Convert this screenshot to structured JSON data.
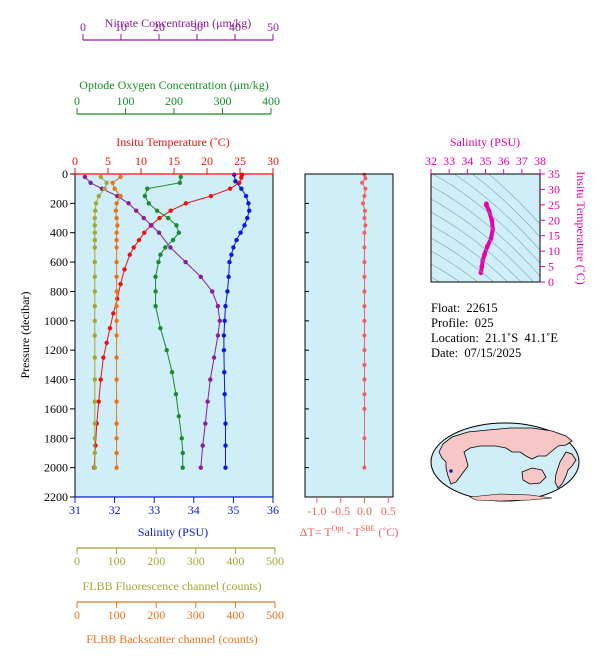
{
  "colors": {
    "nitrate": "#8a1d9a",
    "oxygen": "#1a8a2a",
    "temperature": "#ee1111",
    "salinity": "#0a1ad8",
    "fluorescence": "#a5a533",
    "backscatter": "#e8741b",
    "delta_t": "#f06060",
    "ts_curve": "#e600a8",
    "panel_bg": "#cfeef8"
  },
  "axes": {
    "nitrate": {
      "label": "Nitrate Concentration (μm/kg)",
      "ticks": [
        "0",
        "10",
        "20",
        "30",
        "40",
        "50"
      ]
    },
    "oxygen": {
      "label": "Optode Oxygen Concentration (μm/kg)",
      "ticks": [
        "0",
        "100",
        "200",
        "300",
        "400"
      ]
    },
    "temperature": {
      "label": "Insitu Temperature (˚C)",
      "ticks": [
        "0",
        "5",
        "10",
        "15",
        "20",
        "25",
        "30"
      ]
    },
    "salinity": {
      "label": "Salinity (PSU)",
      "ticks": [
        "31",
        "32",
        "33",
        "34",
        "35",
        "36"
      ]
    },
    "pressure": {
      "label": "Pressure (decibar)",
      "ticks": [
        "0",
        "200",
        "400",
        "600",
        "800",
        "1000",
        "1200",
        "1400",
        "1600",
        "1800",
        "2000",
        "2200"
      ]
    },
    "delta_t": {
      "label_main": "ΔT= T",
      "label_sup1": "Opt",
      "label_mid": " - T",
      "label_sup2": "SBE",
      "label_end": " (˚C)",
      "ticks": [
        "-1.0",
        "-0.5",
        "0.0",
        "0.5"
      ]
    },
    "fluorescence": {
      "label": "FLBB Fluorescence channel (counts)",
      "ticks": [
        "0",
        "100",
        "200",
        "300",
        "400",
        "500"
      ]
    },
    "backscatter": {
      "label": "FLBB Backscatter channel (counts)",
      "ticks": [
        "0",
        "100",
        "200",
        "300",
        "400",
        "500"
      ]
    },
    "ts_salinity": {
      "label": "Salinity (PSU)",
      "ticks": [
        "32",
        "33",
        "34",
        "35",
        "36",
        "37",
        "38"
      ]
    },
    "ts_temperature": {
      "label": "Insitu Temperature (˚C)",
      "ticks": [
        "0",
        "5",
        "10",
        "15",
        "20",
        "25",
        "30",
        "35"
      ]
    }
  },
  "info": {
    "float": "Float:  22615",
    "profile": "Profile:  025",
    "location": "Location:  21.1˚S  41.1˚E",
    "date": "Date:  07/15/2025"
  },
  "chart_data": [
    {
      "type": "line",
      "title": "",
      "ylabel": "Pressure (decibar)",
      "ylim": [
        2200,
        0
      ],
      "grid": false,
      "series": [
        {
          "name": "Insitu Temperature (˚C)",
          "xlim": [
            0,
            30
          ],
          "x": [
            25.3,
            25.2,
            24.9,
            23.5,
            20.6,
            16.8,
            14.5,
            12.8,
            11.5,
            10.5,
            9.7,
            8.9,
            8.3,
            7.5,
            6.9,
            6.4,
            5.8,
            5.3,
            4.8,
            4.3,
            3.9,
            3.6,
            3.3,
            3.1,
            2.9
          ],
          "y": [
            5,
            25,
            60,
            100,
            150,
            200,
            250,
            300,
            350,
            400,
            450,
            500,
            550,
            650,
            750,
            850,
            950,
            1050,
            1150,
            1250,
            1400,
            1550,
            1700,
            1850,
            2000
          ]
        },
        {
          "name": "Salinity (PSU)",
          "xlim": [
            31,
            36
          ],
          "x": [
            35.02,
            35.05,
            35.2,
            35.32,
            35.38,
            35.4,
            35.35,
            35.28,
            35.18,
            35.08,
            35.0,
            34.95,
            34.9,
            34.88,
            34.85,
            34.8,
            34.78,
            34.76,
            34.76,
            34.77,
            34.78,
            34.8,
            34.8,
            34.8
          ],
          "y": [
            5,
            50,
            100,
            150,
            200,
            250,
            300,
            350,
            400,
            450,
            500,
            550,
            600,
            700,
            800,
            900,
            1000,
            1100,
            1200,
            1350,
            1500,
            1700,
            1850,
            2000
          ]
        },
        {
          "name": "Nitrate Concentration (μm/kg)",
          "xlim": [
            0,
            50
          ],
          "x": [
            0.5,
            2,
            5,
            9,
            12,
            14,
            16,
            18,
            20,
            23,
            27,
            31,
            34,
            35.5,
            36,
            35.5,
            34.5,
            33.5,
            32.8,
            32.2,
            31.5,
            31
          ],
          "y": [
            20,
            60,
            100,
            150,
            200,
            250,
            300,
            350,
            400,
            500,
            600,
            700,
            800,
            900,
            1000,
            1100,
            1250,
            1400,
            1550,
            1700,
            1850,
            2000
          ]
        },
        {
          "name": "Optode Oxygen Concentration (μm/kg)",
          "xlim": [
            0,
            400
          ],
          "x": [
            214,
            212,
            145,
            140,
            148,
            165,
            188,
            205,
            210,
            198,
            182,
            172,
            168,
            162,
            162,
            162,
            172,
            185,
            196,
            204,
            210,
            216,
            218,
            218
          ],
          "y": [
            20,
            60,
            100,
            150,
            200,
            250,
            300,
            350,
            400,
            450,
            500,
            550,
            600,
            700,
            800,
            900,
            1050,
            1200,
            1350,
            1500,
            1650,
            1800,
            1900,
            2000
          ]
        },
        {
          "name": "FLBB Fluorescence channel (counts)",
          "xlim": [
            0,
            500
          ],
          "x": [
            60,
            75,
            70,
            55,
            48,
            46,
            45,
            45,
            45,
            45,
            45,
            45,
            45,
            45,
            45,
            45,
            45,
            45,
            45,
            45,
            45,
            45,
            45,
            45
          ],
          "y": [
            20,
            60,
            100,
            150,
            200,
            250,
            300,
            350,
            400,
            450,
            500,
            600,
            700,
            800,
            900,
            1000,
            1100,
            1250,
            1400,
            1550,
            1700,
            1800,
            1900,
            2000
          ]
        },
        {
          "name": "FLBB Backscatter channel (counts)",
          "xlim": [
            0,
            500
          ],
          "x": [
            110,
            90,
            95,
            110,
            100,
            98,
            100,
            102,
            100,
            100,
            100,
            100,
            100,
            100,
            100,
            100,
            100,
            100,
            100,
            100,
            100,
            100,
            100,
            100
          ],
          "y": [
            20,
            60,
            100,
            150,
            200,
            250,
            300,
            350,
            400,
            450,
            500,
            600,
            700,
            800,
            900,
            1000,
            1100,
            1250,
            1400,
            1550,
            1700,
            1800,
            1900,
            2000
          ]
        }
      ]
    },
    {
      "type": "line",
      "xlabel": "ΔT= TOpt - TSBE (˚C)",
      "xlim": [
        -1.25,
        0.6
      ],
      "ylim": [
        2200,
        0
      ],
      "x": [
        0.0,
        0.02,
        -0.05,
        0.02,
        0.0,
        -0.03,
        0.01,
        0.0,
        0.02,
        0.0,
        0.0,
        0.0,
        0.0,
        0.0,
        0.0,
        0.0,
        0.0,
        0.0,
        0.0,
        0.0,
        0.0,
        0.0,
        0.0,
        0.0
      ],
      "y": [
        5,
        30,
        60,
        100,
        150,
        200,
        250,
        300,
        350,
        400,
        500,
        600,
        700,
        800,
        900,
        1000,
        1100,
        1200,
        1300,
        1400,
        1500,
        1600,
        1800,
        2000
      ]
    },
    {
      "type": "line",
      "xlabel": "Salinity (PSU)",
      "ylabel": "Insitu Temperature (˚C)",
      "xlim": [
        32,
        38
      ],
      "ylim": [
        0,
        35
      ],
      "x": [
        34.75,
        34.8,
        34.85,
        34.95,
        35.1,
        35.3,
        35.4,
        35.35,
        35.2,
        35.05,
        35.05
      ],
      "y": [
        3,
        5,
        7,
        9,
        11.5,
        14,
        17,
        20,
        23,
        24.9,
        25.3
      ]
    }
  ]
}
